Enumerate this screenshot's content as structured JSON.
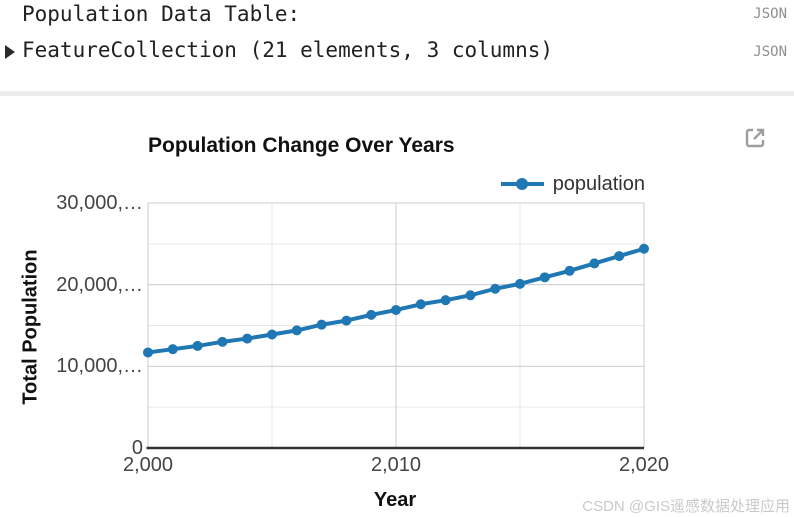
{
  "console": {
    "line1": "Population Data Table:",
    "json_label_1": "JSON",
    "line2": "FeatureCollection (21 elements, 3 columns)",
    "json_label_2": "JSON"
  },
  "chart": {
    "title": "Population Change Over Years",
    "legend": {
      "series_label": "population"
    },
    "xlabel": "Year",
    "ylabel": "Total Population",
    "open_icon": "open-in-new-window-icon"
  },
  "watermark": "CSDN @GIS遥感数据处理应用",
  "colors": {
    "series": "#1f77b4",
    "grid_major": "#cccccc",
    "grid_minor": "#e6e6e6",
    "axis_line": "#333333",
    "tick_text": "#444444",
    "json_label": "#909090",
    "watermark": "#c9c9c9"
  },
  "chart_data": {
    "type": "line",
    "title": "Population Change Over Years",
    "xlabel": "Year",
    "ylabel": "Total Population",
    "legend_position": "top-right",
    "grid": true,
    "marker": "circle",
    "xlim": [
      2000,
      2020
    ],
    "ylim": [
      0,
      30000000
    ],
    "x": [
      2000,
      2001,
      2002,
      2003,
      2004,
      2005,
      2006,
      2007,
      2008,
      2009,
      2010,
      2011,
      2012,
      2013,
      2014,
      2015,
      2016,
      2017,
      2018,
      2019,
      2020
    ],
    "series": [
      {
        "name": "population",
        "color": "#1f77b4",
        "values": [
          11700000,
          12100000,
          12500000,
          13000000,
          13400000,
          13900000,
          14400000,
          15100000,
          15600000,
          16300000,
          16900000,
          17600000,
          18100000,
          18700000,
          19500000,
          20100000,
          20900000,
          21700000,
          22600000,
          23500000,
          24400000
        ]
      }
    ],
    "x_ticks": {
      "values": [
        2000,
        2010,
        2020
      ],
      "labels": [
        "2,000",
        "2,010",
        "2,020"
      ],
      "minor_values": [
        2005,
        2015
      ]
    },
    "y_ticks": {
      "values": [
        0,
        10000000,
        20000000,
        30000000
      ],
      "labels": [
        "0",
        "10,000,…",
        "20,000,…",
        "30,000,…"
      ],
      "minor_values": [
        5000000,
        15000000,
        25000000
      ]
    }
  }
}
